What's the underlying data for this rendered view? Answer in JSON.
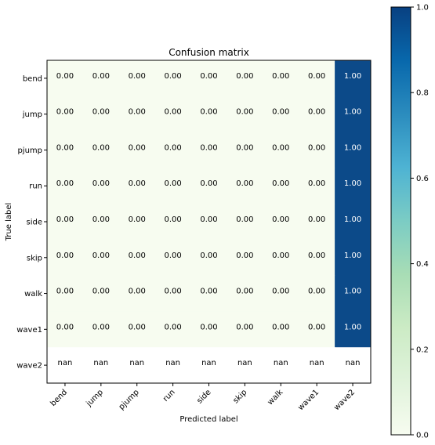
{
  "chart_data": {
    "type": "heatmap",
    "title": "Confusion matrix",
    "xlabel": "Predicted label",
    "ylabel": "True label",
    "x_categories": [
      "bend",
      "jump",
      "pjump",
      "run",
      "side",
      "skip",
      "walk",
      "wave1",
      "wave2"
    ],
    "y_categories": [
      "bend",
      "jump",
      "pjump",
      "run",
      "side",
      "skip",
      "walk",
      "wave1",
      "wave2"
    ],
    "values": [
      [
        0,
        0,
        0,
        0,
        0,
        0,
        0,
        0,
        1
      ],
      [
        0,
        0,
        0,
        0,
        0,
        0,
        0,
        0,
        1
      ],
      [
        0,
        0,
        0,
        0,
        0,
        0,
        0,
        0,
        1
      ],
      [
        0,
        0,
        0,
        0,
        0,
        0,
        0,
        0,
        1
      ],
      [
        0,
        0,
        0,
        0,
        0,
        0,
        0,
        0,
        1
      ],
      [
        0,
        0,
        0,
        0,
        0,
        0,
        0,
        0,
        1
      ],
      [
        0,
        0,
        0,
        0,
        0,
        0,
        0,
        0,
        1
      ],
      [
        0,
        0,
        0,
        0,
        0,
        0,
        0,
        0,
        1
      ],
      [
        null,
        null,
        null,
        null,
        null,
        null,
        null,
        null,
        null
      ]
    ],
    "cell_labels": [
      [
        "0.00",
        "0.00",
        "0.00",
        "0.00",
        "0.00",
        "0.00",
        "0.00",
        "0.00",
        "1.00"
      ],
      [
        "0.00",
        "0.00",
        "0.00",
        "0.00",
        "0.00",
        "0.00",
        "0.00",
        "0.00",
        "1.00"
      ],
      [
        "0.00",
        "0.00",
        "0.00",
        "0.00",
        "0.00",
        "0.00",
        "0.00",
        "0.00",
        "1.00"
      ],
      [
        "0.00",
        "0.00",
        "0.00",
        "0.00",
        "0.00",
        "0.00",
        "0.00",
        "0.00",
        "1.00"
      ],
      [
        "0.00",
        "0.00",
        "0.00",
        "0.00",
        "0.00",
        "0.00",
        "0.00",
        "0.00",
        "1.00"
      ],
      [
        "0.00",
        "0.00",
        "0.00",
        "0.00",
        "0.00",
        "0.00",
        "0.00",
        "0.00",
        "1.00"
      ],
      [
        "0.00",
        "0.00",
        "0.00",
        "0.00",
        "0.00",
        "0.00",
        "0.00",
        "0.00",
        "1.00"
      ],
      [
        "0.00",
        "0.00",
        "0.00",
        "0.00",
        "0.00",
        "0.00",
        "0.00",
        "0.00",
        "1.00"
      ],
      [
        "nan",
        "nan",
        "nan",
        "nan",
        "nan",
        "nan",
        "nan",
        "nan",
        "nan"
      ]
    ],
    "colormap": "GnBu",
    "colorbar": {
      "range": [
        0.0,
        1.0
      ],
      "tick_values": [
        0.0,
        0.2,
        0.4,
        0.6,
        0.8,
        1.0
      ],
      "tick_labels": [
        "0.0",
        "0.2",
        "0.4",
        "0.6",
        "0.8",
        "1.0"
      ]
    },
    "colors": {
      "low": "#f7fcf0",
      "high": "#0c4a89",
      "nan": "#ffffff",
      "text_on_low": "#000000",
      "text_on_high": "#ffffff"
    }
  }
}
